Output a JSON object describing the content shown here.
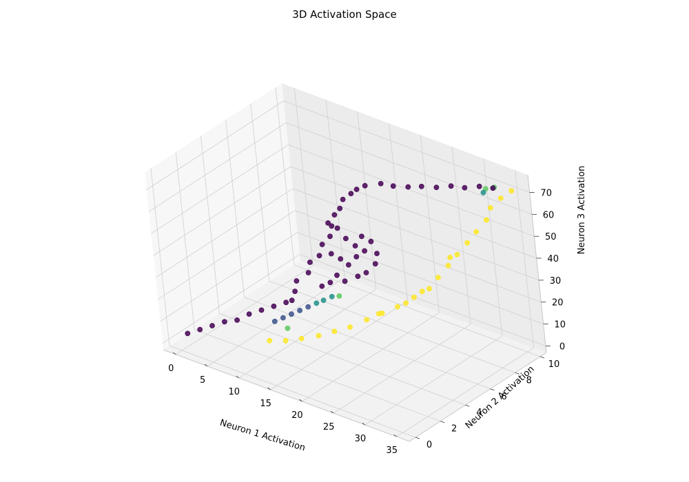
{
  "chart_data": {
    "type": "scatter",
    "title": "3D Activation Space",
    "xlabel": "Neuron 1 Activation",
    "ylabel": "Neuron 2 Activation",
    "zlabel": "Neuron 3 Activation",
    "xlim": [
      -2,
      37
    ],
    "ylim": [
      -0.5,
      10.5
    ],
    "zlim": [
      -3,
      78
    ],
    "x_ticks": [
      0,
      5,
      10,
      15,
      20,
      25,
      30,
      35
    ],
    "y_ticks": [
      0,
      2,
      4,
      6,
      8,
      10
    ],
    "z_ticks": [
      0,
      10,
      20,
      30,
      40,
      50,
      60,
      70
    ],
    "colormap": "viridis",
    "palette": [
      "#440154",
      "#3b528b",
      "#21918c",
      "#5ec962",
      "#fde725"
    ],
    "grid": true,
    "series": [
      {
        "color_value": 0.0,
        "points": [
          [
            -1,
            1,
            0
          ],
          [
            0,
            1.5,
            1
          ],
          [
            1,
            2,
            2
          ],
          [
            2,
            2.5,
            3
          ],
          [
            3,
            3,
            3
          ],
          [
            4,
            3.5,
            5
          ],
          [
            5,
            4,
            6
          ],
          [
            6,
            4.5,
            7
          ],
          [
            7,
            5,
            8
          ],
          [
            8,
            5,
            10
          ],
          [
            8,
            5.3,
            13
          ],
          [
            8,
            5.5,
            17
          ],
          [
            9,
            6,
            20
          ],
          [
            9,
            6.2,
            24
          ],
          [
            10,
            6.5,
            27
          ],
          [
            10,
            6.8,
            31
          ],
          [
            11,
            7,
            35
          ],
          [
            11,
            7.2,
            39
          ],
          [
            11,
            7.5,
            43
          ],
          [
            12,
            7.5,
            47
          ],
          [
            12,
            7.8,
            50
          ],
          [
            13,
            8,
            53
          ],
          [
            14,
            8,
            56
          ],
          [
            15,
            8.2,
            58
          ],
          [
            17,
            8.5,
            60
          ],
          [
            19,
            8.5,
            61
          ],
          [
            21,
            8.7,
            62
          ],
          [
            23,
            8.8,
            64
          ],
          [
            25,
            9,
            65
          ],
          [
            27,
            9.2,
            67
          ],
          [
            29,
            9.3,
            68
          ],
          [
            31,
            9.5,
            70
          ],
          [
            33,
            9.6,
            71
          ],
          [
            12,
            6.5,
            30
          ],
          [
            13,
            6.7,
            28
          ],
          [
            14,
            6.8,
            26
          ],
          [
            15,
            7,
            30
          ],
          [
            16,
            7.2,
            33
          ],
          [
            15,
            7,
            35
          ],
          [
            14,
            6.8,
            38
          ],
          [
            13,
            6.7,
            42
          ],
          [
            12,
            6.5,
            44
          ],
          [
            16,
            6.5,
            24
          ],
          [
            17,
            6.7,
            26
          ],
          [
            18,
            7,
            30
          ],
          [
            18,
            7.2,
            34
          ],
          [
            17,
            7.3,
            38
          ],
          [
            16,
            7.1,
            40
          ],
          [
            13,
            6.3,
            22
          ],
          [
            14,
            6.4,
            20
          ],
          [
            12,
            6.2,
            18
          ],
          [
            11,
            6,
            16
          ]
        ]
      },
      {
        "color_value": 0.3,
        "points": [
          [
            7,
            4,
            3
          ],
          [
            8,
            4.2,
            5
          ],
          [
            9,
            4.4,
            7
          ],
          [
            10,
            4.6,
            9
          ],
          [
            11,
            4.8,
            11
          ]
        ]
      },
      {
        "color_value": 0.5,
        "points": [
          [
            12,
            5,
            13
          ],
          [
            13,
            5.1,
            15
          ],
          [
            14,
            5.3,
            17
          ],
          [
            32,
            9.3,
            69
          ]
        ]
      },
      {
        "color_value": 0.75,
        "points": [
          [
            9,
            4,
            2
          ],
          [
            15,
            5.4,
            18
          ],
          [
            32,
            9.5,
            70
          ],
          [
            33,
            9.7,
            71
          ]
        ]
      },
      {
        "color_value": 1.0,
        "points": [
          [
            8,
            3,
            -1
          ],
          [
            10,
            3.3,
            0
          ],
          [
            12,
            3.6,
            2
          ],
          [
            14,
            4,
            4
          ],
          [
            16,
            4.3,
            7
          ],
          [
            18,
            4.6,
            10
          ],
          [
            20,
            5,
            14
          ],
          [
            22,
            5.3,
            18
          ],
          [
            24,
            5.6,
            22
          ],
          [
            26,
            6,
            27
          ],
          [
            28,
            6.3,
            32
          ],
          [
            29,
            6.6,
            37
          ],
          [
            30,
            7,
            42
          ],
          [
            31,
            7.3,
            47
          ],
          [
            32,
            7.7,
            52
          ],
          [
            33,
            8,
            57
          ],
          [
            34,
            8.4,
            62
          ],
          [
            34,
            8.8,
            66
          ],
          [
            35,
            9.2,
            70
          ],
          [
            36,
            9.6,
            73
          ],
          [
            21,
            5.5,
            16
          ],
          [
            25,
            5.8,
            24
          ],
          [
            27,
            6.2,
            30
          ],
          [
            30,
            7.2,
            45
          ]
        ]
      }
    ]
  }
}
